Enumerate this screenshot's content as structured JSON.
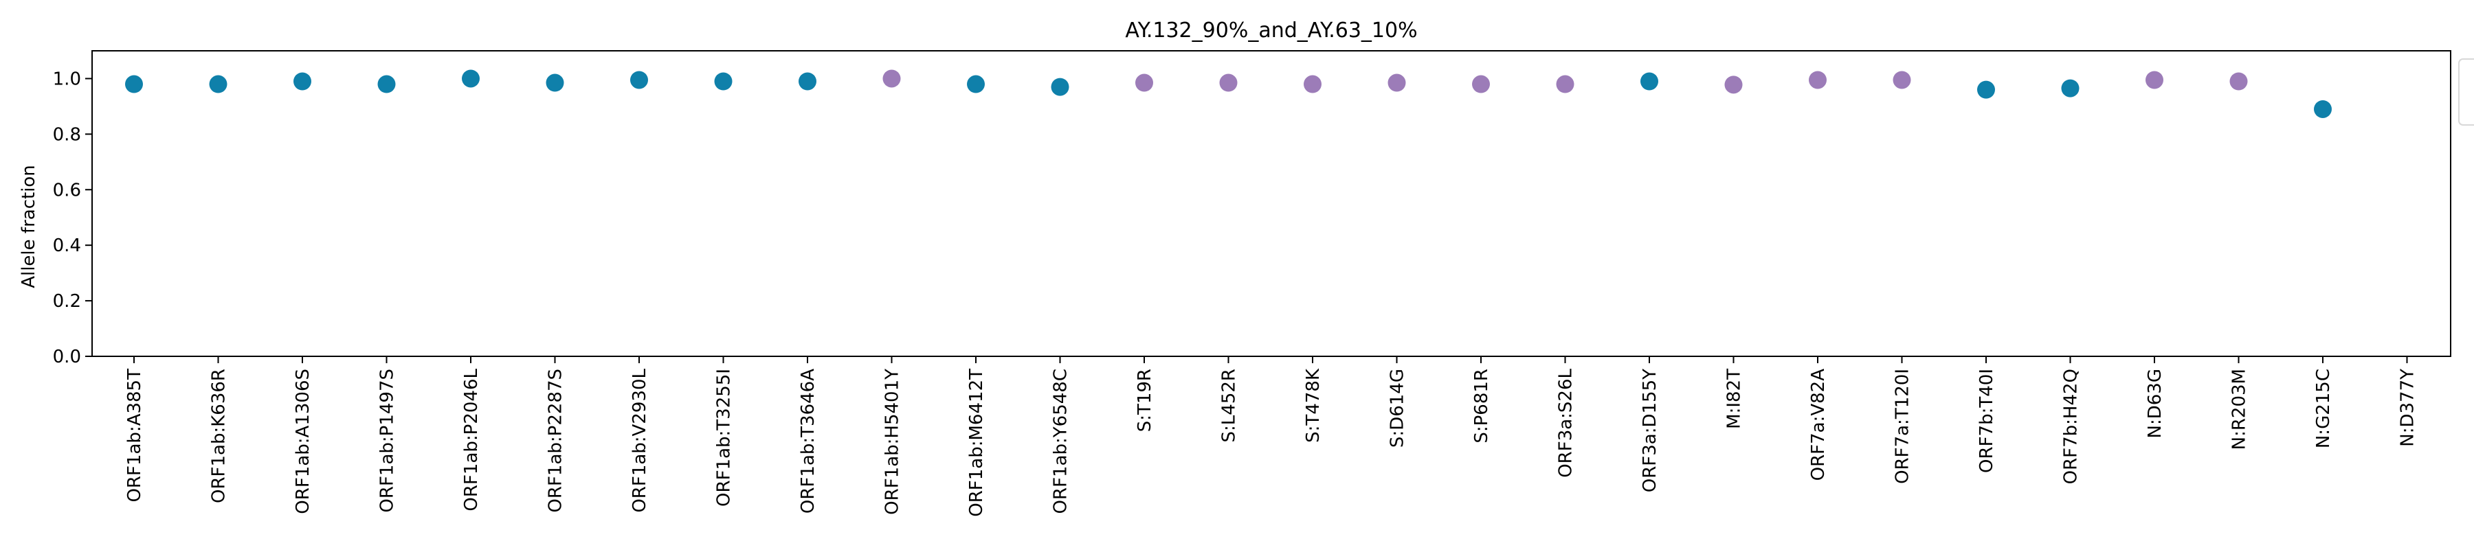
{
  "chart_data": {
    "type": "scatter",
    "title": "AY.132_90%_and_AY.63_10%",
    "xlabel": "",
    "ylabel": "Allele fraction",
    "ylim": [
      0.0,
      1.1
    ],
    "yticks": [
      0.0,
      0.2,
      0.4,
      0.6,
      0.8,
      1.0
    ],
    "ytick_labels": [
      "0.0",
      "0.2",
      "0.4",
      "0.6",
      "0.8",
      "1.0"
    ],
    "grid": false,
    "legend": {
      "placement": "right, partially outside axes (cropped)",
      "entries": []
    },
    "colors": {
      "blue": "#0f80aa",
      "purple": "#9c7cb8"
    },
    "categories": [
      "ORF1ab:A385T",
      "ORF1ab:K636R",
      "ORF1ab:A1306S",
      "ORF1ab:P1497S",
      "ORF1ab:P2046L",
      "ORF1ab:P2287S",
      "ORF1ab:V2930L",
      "ORF1ab:T3255I",
      "ORF1ab:T3646A",
      "ORF1ab:H5401Y",
      "ORF1ab:M6412T",
      "ORF1ab:Y6548C",
      "S:T19R",
      "S:L452R",
      "S:T478K",
      "S:D614G",
      "S:P681R",
      "ORF3a:S26L",
      "ORF3a:D155Y",
      "M:I82T",
      "ORF7a:V82A",
      "ORF7a:T120I",
      "ORF7b:T40I",
      "ORF7b:H42Q",
      "N:D63G",
      "N:R203M",
      "N:G215C",
      "N:D377Y"
    ],
    "values": [
      0.98,
      0.98,
      0.99,
      0.98,
      1.0,
      0.985,
      0.995,
      0.99,
      0.99,
      1.0,
      0.98,
      0.97,
      0.985,
      0.985,
      0.98,
      0.985,
      0.98,
      0.98,
      0.99,
      0.978,
      0.995,
      0.995,
      0.96,
      0.965,
      0.995,
      0.99,
      0.89,
      null
    ],
    "point_colors": [
      "blue",
      "blue",
      "blue",
      "blue",
      "blue",
      "blue",
      "blue",
      "blue",
      "blue",
      "purple",
      "blue",
      "blue",
      "purple",
      "purple",
      "purple",
      "purple",
      "purple",
      "purple",
      "blue",
      "purple",
      "purple",
      "purple",
      "blue",
      "blue",
      "purple",
      "purple",
      "blue",
      null
    ]
  }
}
